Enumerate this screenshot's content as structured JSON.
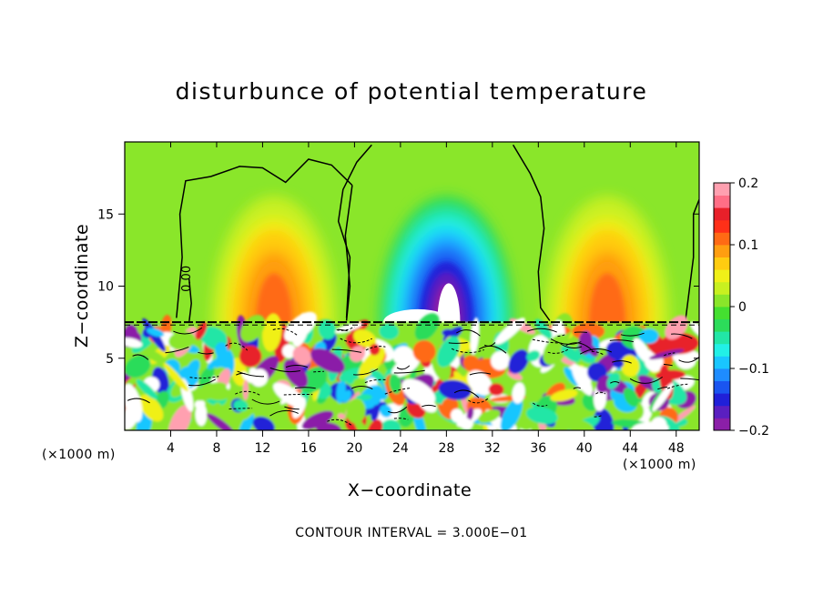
{
  "chart_data": {
    "type": "heatmap",
    "title": "disturbunce of potential temperature",
    "xlabel": "X−coordinate",
    "ylabel": "Z−coordinate",
    "x_unit_label_left": "(×1000 m)",
    "x_unit_label_right": "(×1000 m)",
    "footer": "CONTOUR INTERVAL = 3.000E−01",
    "xlim": [
      0,
      50
    ],
    "ylim": [
      0,
      20
    ],
    "x_ticks": [
      4,
      8,
      12,
      16,
      20,
      24,
      28,
      32,
      36,
      40,
      44,
      48
    ],
    "y_ticks": [
      5,
      10,
      15
    ],
    "contour_label": "0.00",
    "colorbar": {
      "range": [
        -0.2,
        0.2
      ],
      "tick_values": [
        0.2,
        0.1,
        0,
        -0.1,
        -0.2
      ],
      "tick_labels": [
        "0.2",
        "0.1",
        "0",
        "−0.1",
        "−0.2"
      ],
      "colors": [
        "#8b1fa8",
        "#5a1fc0",
        "#2020d8",
        "#1a55f0",
        "#1e8cff",
        "#19c6ff",
        "#22f0e6",
        "#22e6a6",
        "#2cdc5a",
        "#44e030",
        "#8ae62a",
        "#c8f020",
        "#f0f018",
        "#ffcc10",
        "#ff9e10",
        "#ff6a14",
        "#ff3018",
        "#e8202a",
        "#ff6e86",
        "#ffa0b0"
      ]
    },
    "features": [
      {
        "kind": "positive-plume",
        "x_center": 13,
        "z_top": 17,
        "max": 0.12
      },
      {
        "kind": "negative-plume",
        "x_center": 28,
        "z_top": 17,
        "min": -0.2
      },
      {
        "kind": "positive-plume",
        "x_center": 42,
        "z_top": 17,
        "max": 0.12
      },
      {
        "kind": "turbulent-layer",
        "z_range": [
          0,
          7.5
        ]
      }
    ]
  }
}
